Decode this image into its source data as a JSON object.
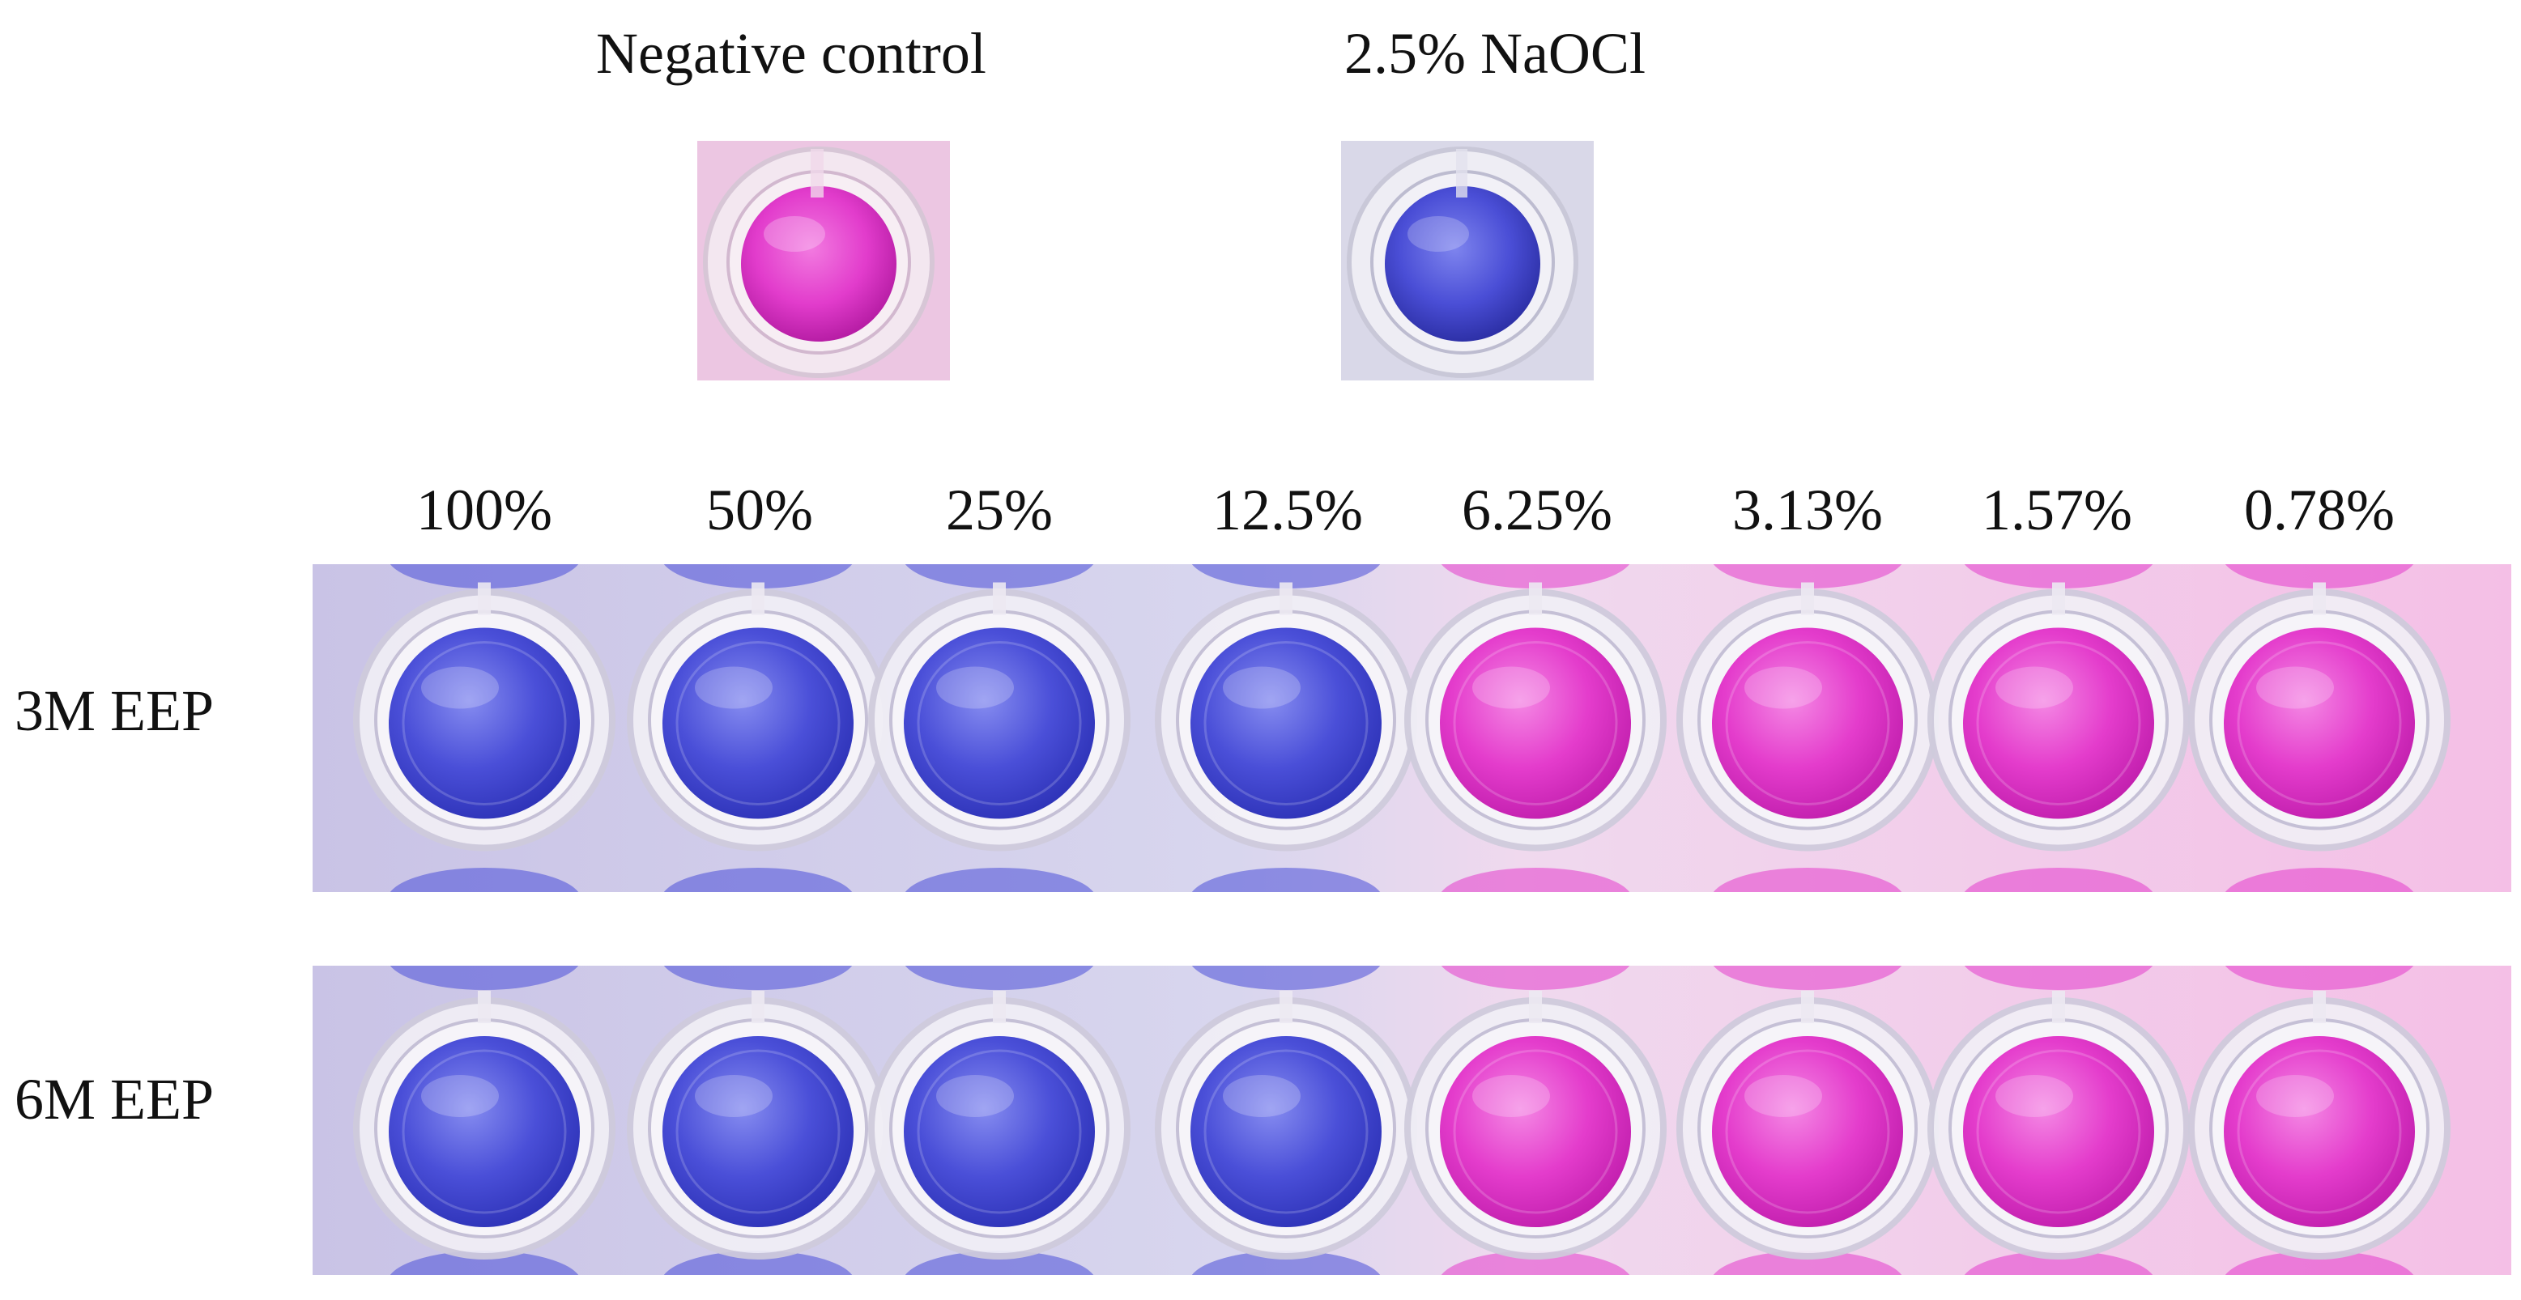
{
  "controls": [
    {
      "label": "Negative control",
      "result": "pink",
      "color": "#e040c0"
    },
    {
      "label": "2.5% NaOCl",
      "result": "blue",
      "color": "#4a4ad6"
    }
  ],
  "concentrations": [
    "100%",
    "50%",
    "25%",
    "12.5%",
    "6.25%",
    "3.13%",
    "1.57%",
    "0.78%"
  ],
  "rows": [
    {
      "label": "3M EEP",
      "wells": [
        "blue",
        "blue",
        "blue",
        "blue",
        "pink",
        "pink",
        "pink",
        "pink"
      ]
    },
    {
      "label": "6M EEP",
      "wells": [
        "blue",
        "blue",
        "blue",
        "blue",
        "pink",
        "pink",
        "pink",
        "pink"
      ]
    }
  ],
  "colors": {
    "blue": "#4a4fd8",
    "blue_deep": "#2e33b8",
    "pink": "#e43ccc",
    "pink_deep": "#c21fae",
    "plastic": "#e8e6ee"
  }
}
